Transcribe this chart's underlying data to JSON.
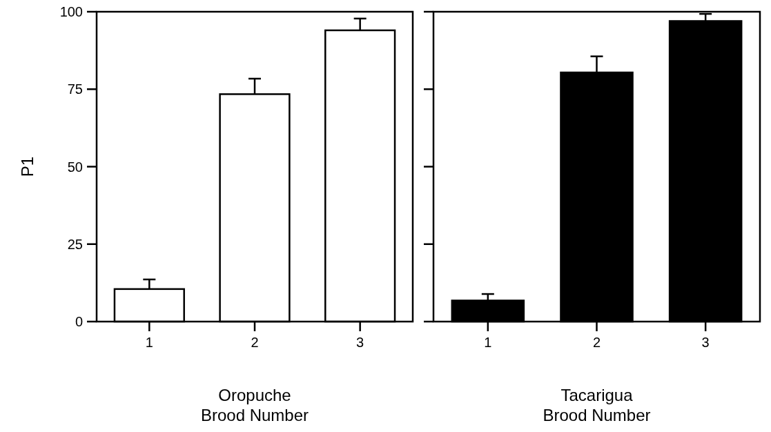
{
  "chart_data": [
    {
      "type": "bar",
      "categories": [
        "1",
        "2",
        "3"
      ],
      "values": [
        10.5,
        73.4,
        94.0
      ],
      "errors": [
        [
          10.5,
          13.6
        ],
        [
          73.4,
          78.4
        ],
        [
          94.0,
          97.8
        ]
      ],
      "color": "#ffffff",
      "ylim": [
        0,
        100
      ],
      "yticks": [
        0,
        25,
        50,
        75,
        100
      ],
      "ylabel": "P1",
      "xlabel": "Oropuche\nBrood Number"
    },
    {
      "type": "bar",
      "categories": [
        "1",
        "2",
        "3"
      ],
      "values": [
        6.8,
        80.4,
        97.0
      ],
      "errors": [
        [
          6.8,
          8.9
        ],
        [
          80.4,
          85.6
        ],
        [
          97.0,
          99.3
        ]
      ],
      "color": "#000000",
      "ylim": [
        0,
        100
      ],
      "yticks": [
        0,
        25,
        50,
        75,
        100
      ],
      "xlabel": "Tacarigua\nBrood Number",
      "tick_labels": "x"
    }
  ]
}
